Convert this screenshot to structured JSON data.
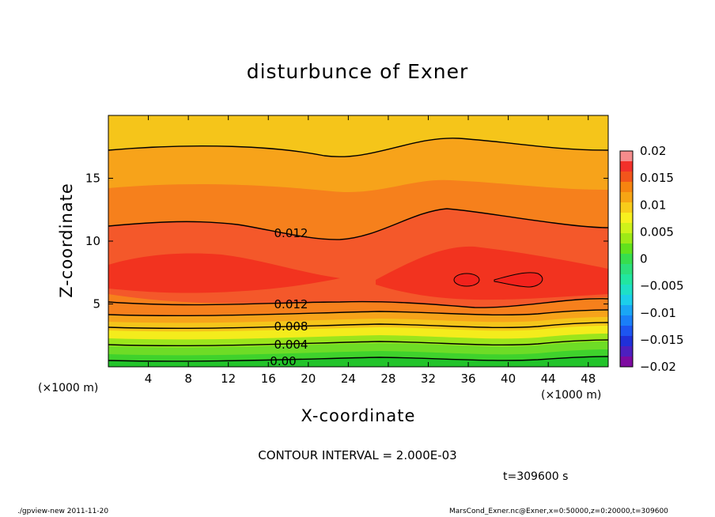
{
  "chart_data": {
    "type": "contour",
    "title": "disturbunce of Exner",
    "xlabel": "X-coordinate",
    "ylabel": "Z-coordinate",
    "x_unit_label": "(×1000 m)",
    "xlim": [
      0,
      50
    ],
    "ylim": [
      0,
      20
    ],
    "x_ticks": [
      4,
      8,
      12,
      16,
      20,
      24,
      28,
      32,
      36,
      40,
      44,
      48
    ],
    "y_ticks": [
      5,
      10,
      15
    ],
    "contour_labels": [
      "0.012",
      "0.012",
      "0.008",
      "0.004",
      "0.00"
    ],
    "colorbar": {
      "labels": [
        "0.02",
        "0.015",
        "0.01",
        "0.005",
        "0",
        "−0.005",
        "−0.01",
        "−0.015",
        "−0.02"
      ],
      "levels": [
        -0.02,
        -0.018,
        -0.016,
        -0.014,
        -0.012,
        -0.01,
        -0.008,
        -0.006,
        -0.004,
        -0.002,
        0,
        0.002,
        0.004,
        0.006,
        0.008,
        0.01,
        0.012,
        0.014,
        0.016,
        0.018,
        0.02
      ],
      "colors": [
        "#7d0aa0",
        "#4d1fbf",
        "#2030d8",
        "#1d55f0",
        "#1a7ff8",
        "#1aa6f5",
        "#1ccfea",
        "#1ee0c6",
        "#22e6a0",
        "#2ce07c",
        "#37de4e",
        "#62e21c",
        "#9eea16",
        "#cff21a",
        "#f7f01f",
        "#f8cc1a",
        "#f7a514",
        "#f68410",
        "#f2551b",
        "#f2302a",
        "#f58c8c"
      ]
    },
    "contour_interval_text": "CONTOUR INTERVAL = 2.000E-03",
    "time_text": "t=309600 s"
  },
  "footer": {
    "left": "./gpview-new   2011-11-20",
    "right": "MarsCond_Exner.nc@Exner,x=0:50000,z=0:20000,t=309600"
  },
  "colors": {
    "band_low": "#22c32a",
    "band_mid_low": "#9be51c",
    "band_yellow": "#f4ec1c",
    "band_gold": "#f5c51a",
    "band_orange": "#f7a31a",
    "band_dark_orange": "#f6801c",
    "band_red_orange": "#f4582a",
    "band_red": "#f2331f"
  }
}
